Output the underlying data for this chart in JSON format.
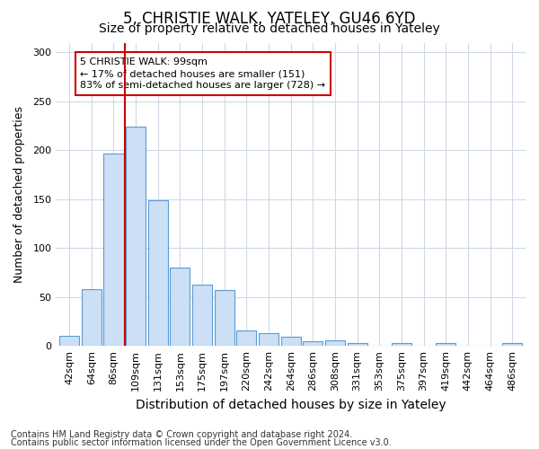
{
  "title1": "5, CHRISTIE WALK, YATELEY, GU46 6YD",
  "title2": "Size of property relative to detached houses in Yateley",
  "xlabel": "Distribution of detached houses by size in Yateley",
  "ylabel": "Number of detached properties",
  "categories": [
    "42sqm",
    "64sqm",
    "86sqm",
    "109sqm",
    "131sqm",
    "153sqm",
    "175sqm",
    "197sqm",
    "220sqm",
    "242sqm",
    "264sqm",
    "286sqm",
    "308sqm",
    "331sqm",
    "353sqm",
    "375sqm",
    "397sqm",
    "419sqm",
    "442sqm",
    "464sqm",
    "486sqm"
  ],
  "values": [
    10,
    58,
    197,
    224,
    149,
    80,
    63,
    57,
    16,
    13,
    9,
    5,
    6,
    3,
    0,
    3,
    0,
    3,
    0,
    0,
    3
  ],
  "bar_color": "#ccdff5",
  "bar_edge_color": "#5b9bd5",
  "vline_x": 2.5,
  "vline_color": "#cc0000",
  "annotation_line1": "5 CHRISTIE WALK: 99sqm",
  "annotation_line2": "← 17% of detached houses are smaller (151)",
  "annotation_line3": "83% of semi-detached houses are larger (728) →",
  "annotation_box_color": "white",
  "annotation_box_edge": "#cc0000",
  "ylim": [
    0,
    310
  ],
  "yticks": [
    0,
    50,
    100,
    150,
    200,
    250,
    300
  ],
  "footer1": "Contains HM Land Registry data © Crown copyright and database right 2024.",
  "footer2": "Contains public sector information licensed under the Open Government Licence v3.0.",
  "bg_color": "#ffffff",
  "plot_bg_color": "#ffffff",
  "grid_color": "#d0d8e8",
  "title1_fontsize": 12,
  "title2_fontsize": 10,
  "tick_fontsize": 8,
  "ylabel_fontsize": 9,
  "xlabel_fontsize": 10,
  "footer_fontsize": 7
}
